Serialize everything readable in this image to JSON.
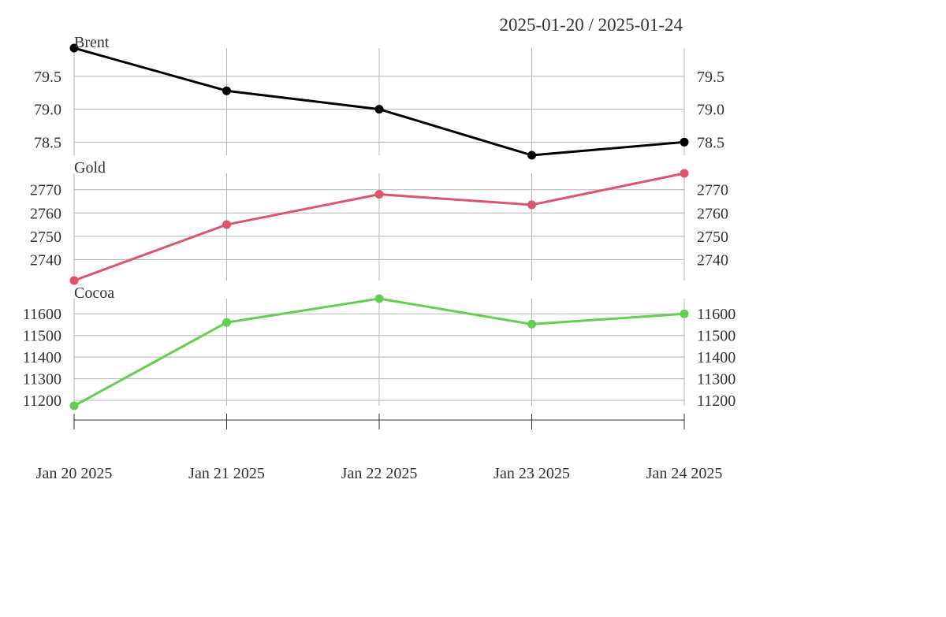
{
  "chart_data": {
    "type": "line",
    "date_range": "2025-01-20 / 2025-01-24",
    "x": [
      "Jan 20 2025",
      "Jan 21 2025",
      "Jan 22 2025",
      "Jan 23 2025",
      "Jan 24 2025"
    ],
    "grid": true,
    "y_axes": "both-sides",
    "panels": [
      {
        "name": "Brent",
        "color": "#000000",
        "values": [
          79.93,
          79.28,
          79.0,
          78.3,
          78.5
        ],
        "ylim": [
          78.3,
          79.93
        ],
        "yticks": [
          "79.5",
          "79.0",
          "78.5"
        ],
        "ytick_values": [
          79.5,
          79.0,
          78.5
        ]
      },
      {
        "name": "Gold",
        "color": "#df536b",
        "values": [
          2731,
          2755,
          2768,
          2763.5,
          2777
        ],
        "ylim": [
          2731,
          2777
        ],
        "yticks": [
          "2770",
          "2760",
          "2750",
          "2740"
        ],
        "ytick_values": [
          2770,
          2760,
          2750,
          2740
        ]
      },
      {
        "name": "Cocoa",
        "color": "#61d04f",
        "values": [
          11175,
          11560,
          11670,
          11552,
          11600
        ],
        "ylim": [
          11175,
          11670
        ],
        "yticks": [
          "11600",
          "11500",
          "11400",
          "11300",
          "11200"
        ],
        "ytick_values": [
          11600,
          11500,
          11400,
          11300,
          11200
        ]
      }
    ]
  }
}
